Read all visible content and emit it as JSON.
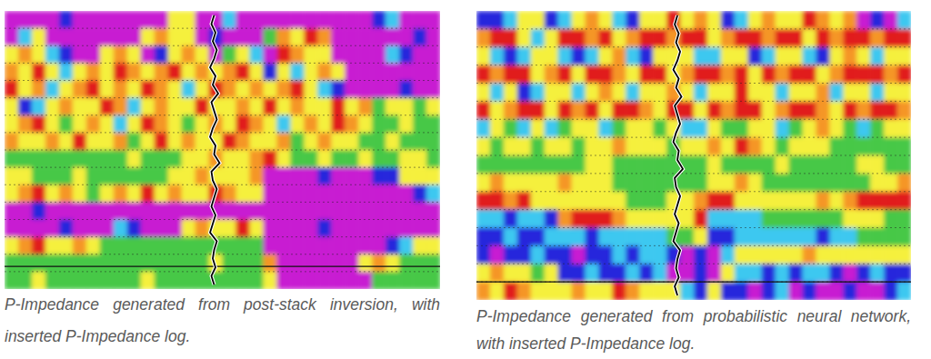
{
  "chart_data": [
    {
      "type": "heatmap",
      "caption": "P-Impedance generated from post-stack inversion, with inserted P-Impedance log.",
      "clim": [
        0,
        6
      ],
      "grid": true,
      "tick_labels": false,
      "horizon": 14.7,
      "well_log": [
        15.4,
        15.2,
        15.5,
        15.3,
        15.6,
        15.4,
        15.1,
        15.5,
        15.3,
        15.7,
        15.2,
        15.4,
        15.6,
        15.3,
        15.1,
        15.5,
        15.4,
        15.8,
        15.2,
        15.3,
        15.6,
        15.4,
        15.2,
        15.5,
        15.3,
        15.1,
        15.6,
        15.4,
        15.3,
        15.5,
        15.2,
        15.4
      ],
      "cells": [
        [
          0,
          0,
          0,
          0,
          1,
          0,
          0,
          0,
          0,
          0,
          0,
          0,
          4,
          4,
          0,
          0,
          2,
          0,
          0,
          0,
          0,
          0,
          0,
          0,
          0,
          0,
          0,
          1,
          2,
          0,
          0,
          0
        ],
        [
          0,
          2,
          4,
          0,
          0,
          0,
          0,
          0,
          0,
          0,
          4,
          5,
          4,
          4,
          0,
          1,
          0,
          0,
          0,
          3,
          5,
          4,
          6,
          5,
          0,
          0,
          0,
          0,
          0,
          0,
          1,
          0
        ],
        [
          4,
          5,
          4,
          2,
          1,
          0,
          0,
          4,
          5,
          4,
          0,
          1,
          4,
          5,
          4,
          0,
          3,
          4,
          2,
          0,
          6,
          5,
          4,
          4,
          0,
          0,
          0,
          0,
          2,
          1,
          0,
          0
        ],
        [
          5,
          4,
          6,
          4,
          2,
          4,
          5,
          4,
          6,
          5,
          4,
          5,
          6,
          4,
          5,
          4,
          5,
          6,
          4,
          1,
          4,
          2,
          4,
          5,
          4,
          0,
          0,
          0,
          0,
          0,
          0,
          0
        ],
        [
          6,
          4,
          5,
          2,
          4,
          5,
          6,
          4,
          5,
          4,
          6,
          5,
          4,
          2,
          4,
          6,
          5,
          4,
          5,
          4,
          5,
          6,
          4,
          2,
          1,
          0,
          0,
          0,
          0,
          1,
          0,
          0
        ],
        [
          4,
          1,
          2,
          4,
          5,
          4,
          4,
          6,
          5,
          2,
          4,
          5,
          4,
          4,
          6,
          4,
          4,
          5,
          4,
          6,
          4,
          5,
          4,
          4,
          6,
          4,
          5,
          3,
          4,
          4,
          3,
          4
        ],
        [
          4,
          5,
          6,
          4,
          3,
          4,
          5,
          4,
          2,
          4,
          6,
          5,
          4,
          3,
          4,
          5,
          4,
          6,
          5,
          4,
          2,
          4,
          5,
          4,
          6,
          5,
          4,
          3,
          3,
          4,
          3,
          3
        ],
        [
          5,
          4,
          4,
          5,
          4,
          6,
          4,
          4,
          5,
          3,
          4,
          6,
          4,
          5,
          4,
          4,
          6,
          5,
          4,
          4,
          5,
          3,
          4,
          5,
          4,
          4,
          3,
          3,
          4,
          3,
          3,
          3
        ],
        [
          3,
          3,
          3,
          3,
          3,
          3,
          3,
          3,
          3,
          4,
          3,
          3,
          3,
          4,
          4,
          5,
          4,
          4,
          5,
          6,
          4,
          3,
          3,
          4,
          3,
          3,
          4,
          3,
          3,
          4,
          4,
          3
        ],
        [
          4,
          4,
          3,
          3,
          3,
          4,
          3,
          3,
          3,
          3,
          3,
          3,
          4,
          4,
          5,
          4,
          4,
          4,
          5,
          0,
          0,
          0,
          0,
          1,
          0,
          0,
          0,
          1,
          1,
          4,
          4,
          4
        ],
        [
          4,
          5,
          6,
          4,
          5,
          4,
          3,
          4,
          5,
          4,
          6,
          4,
          5,
          4,
          4,
          6,
          5,
          4,
          4,
          0,
          0,
          0,
          0,
          0,
          0,
          0,
          0,
          0,
          0,
          0,
          1,
          2
        ],
        [
          0,
          0,
          1,
          0,
          0,
          0,
          0,
          0,
          0,
          0,
          0,
          0,
          0,
          0,
          0,
          0,
          0,
          0,
          0,
          0,
          0,
          0,
          0,
          0,
          0,
          0,
          0,
          0,
          0,
          0,
          0,
          0
        ],
        [
          0,
          0,
          0,
          0,
          1,
          0,
          0,
          0,
          2,
          1,
          0,
          0,
          0,
          4,
          5,
          4,
          4,
          6,
          4,
          0,
          0,
          0,
          0,
          1,
          0,
          0,
          0,
          0,
          0,
          0,
          0,
          0
        ],
        [
          4,
          5,
          6,
          4,
          4,
          5,
          4,
          3,
          3,
          3,
          3,
          3,
          3,
          3,
          3,
          3,
          3,
          3,
          3,
          0,
          0,
          0,
          0,
          0,
          0,
          0,
          0,
          0,
          1,
          2,
          4,
          4
        ],
        [
          3,
          3,
          3,
          3,
          3,
          3,
          3,
          3,
          3,
          3,
          3,
          3,
          3,
          3,
          3,
          4,
          3,
          3,
          3,
          5,
          0,
          0,
          0,
          0,
          0,
          0,
          4,
          5,
          4,
          3,
          3,
          3
        ],
        [
          3,
          3,
          4,
          3,
          3,
          3,
          3,
          3,
          3,
          3,
          4,
          3,
          3,
          3,
          3,
          3,
          3,
          3,
          3,
          4,
          0,
          0,
          0,
          0,
          0,
          0,
          0,
          3,
          3,
          3,
          3,
          3
        ]
      ]
    },
    {
      "type": "heatmap",
      "caption": "P-Impedance generated from probabilistic neural network, with inserted P-Impedance log.",
      "clim": [
        0,
        6
      ],
      "grid": true,
      "tick_labels": false,
      "horizon": 15.0,
      "well_log": [
        14.8,
        14.6,
        14.9,
        14.7,
        15.0,
        14.8,
        14.5,
        14.9,
        14.7,
        15.1,
        14.6,
        14.8,
        15.0,
        14.7,
        14.5,
        14.9,
        14.8,
        15.2,
        14.6,
        14.7,
        15.0,
        14.8,
        14.6,
        14.9,
        14.7,
        14.5,
        15.0,
        14.8,
        14.7,
        14.9,
        14.6,
        14.8
      ],
      "cells": [
        [
          1,
          1,
          2,
          4,
          4,
          1,
          2,
          4,
          5,
          4,
          2,
          1,
          4,
          4,
          6,
          4,
          5,
          4,
          1,
          2,
          4,
          5,
          4,
          4,
          6,
          5,
          4,
          5,
          0,
          1,
          0,
          2
        ],
        [
          5,
          6,
          6,
          4,
          2,
          4,
          6,
          6,
          5,
          6,
          4,
          5,
          6,
          6,
          5,
          6,
          6,
          4,
          5,
          6,
          6,
          5,
          6,
          6,
          4,
          6,
          5,
          6,
          6,
          5,
          6,
          6
        ],
        [
          4,
          2,
          1,
          2,
          4,
          4,
          2,
          1,
          2,
          4,
          5,
          2,
          1,
          4,
          4,
          4,
          2,
          2,
          4,
          4,
          1,
          2,
          4,
          4,
          2,
          1,
          4,
          5,
          4,
          2,
          4,
          4
        ],
        [
          6,
          5,
          6,
          6,
          4,
          5,
          6,
          4,
          6,
          6,
          5,
          4,
          6,
          6,
          4,
          5,
          6,
          6,
          5,
          6,
          4,
          6,
          5,
          6,
          6,
          4,
          5,
          6,
          6,
          6,
          5,
          6
        ],
        [
          4,
          2,
          4,
          1,
          2,
          4,
          4,
          2,
          4,
          5,
          4,
          2,
          4,
          4,
          5,
          4,
          2,
          4,
          4,
          6,
          4,
          4,
          2,
          4,
          4,
          5,
          2,
          4,
          4,
          2,
          4,
          4
        ],
        [
          6,
          4,
          5,
          6,
          6,
          4,
          6,
          5,
          6,
          4,
          6,
          6,
          5,
          4,
          6,
          6,
          4,
          6,
          5,
          6,
          6,
          4,
          5,
          6,
          6,
          5,
          4,
          6,
          5,
          6,
          6,
          5
        ],
        [
          2,
          4,
          3,
          2,
          4,
          2,
          3,
          4,
          4,
          2,
          3,
          4,
          4,
          3,
          4,
          2,
          2,
          4,
          3,
          3,
          4,
          4,
          2,
          3,
          4,
          5,
          4,
          3,
          2,
          3,
          4,
          4
        ],
        [
          4,
          3,
          4,
          4,
          3,
          4,
          4,
          3,
          4,
          4,
          5,
          4,
          4,
          4,
          3,
          4,
          4,
          5,
          4,
          6,
          5,
          4,
          3,
          4,
          4,
          4,
          3,
          3,
          3,
          3,
          3,
          3
        ],
        [
          3,
          3,
          3,
          3,
          3,
          3,
          3,
          3,
          4,
          4,
          3,
          3,
          3,
          3,
          3,
          3,
          3,
          4,
          3,
          3,
          3,
          3,
          4,
          3,
          3,
          3,
          3,
          3,
          4,
          4,
          3,
          3
        ],
        [
          4,
          5,
          4,
          4,
          4,
          4,
          5,
          4,
          4,
          4,
          3,
          3,
          3,
          3,
          3,
          3,
          3,
          4,
          4,
          5,
          4,
          3,
          3,
          3,
          3,
          3,
          3,
          3,
          3,
          4,
          4,
          5
        ],
        [
          6,
          6,
          5,
          6,
          4,
          4,
          4,
          4,
          4,
          4,
          4,
          3,
          3,
          3,
          4,
          4,
          5,
          6,
          6,
          4,
          4,
          4,
          4,
          4,
          4,
          5,
          4,
          5,
          6,
          6,
          6,
          6
        ],
        [
          2,
          2,
          1,
          2,
          2,
          1,
          5,
          6,
          6,
          6,
          5,
          4,
          4,
          4,
          4,
          4,
          6,
          2,
          2,
          2,
          2,
          3,
          3,
          3,
          3,
          3,
          3,
          4,
          4,
          4,
          3,
          3
        ],
        [
          1,
          1,
          2,
          1,
          1,
          2,
          2,
          2,
          1,
          2,
          2,
          2,
          2,
          2,
          3,
          3,
          4,
          1,
          1,
          2,
          2,
          2,
          2,
          2,
          2,
          1,
          2,
          2,
          3,
          3,
          3,
          3
        ],
        [
          1,
          0,
          1,
          1,
          2,
          1,
          1,
          0,
          1,
          1,
          2,
          1,
          2,
          2,
          1,
          0,
          1,
          0,
          2,
          4,
          4,
          4,
          4,
          4,
          5,
          4,
          4,
          4,
          4,
          4,
          4,
          4
        ],
        [
          4,
          5,
          4,
          4,
          3,
          4,
          1,
          1,
          2,
          1,
          1,
          2,
          1,
          2,
          0,
          0,
          1,
          0,
          4,
          2,
          2,
          1,
          2,
          1,
          2,
          2,
          1,
          0,
          1,
          2,
          1,
          1
        ],
        [
          5,
          4,
          6,
          5,
          4,
          4,
          4,
          5,
          4,
          4,
          6,
          5,
          4,
          4,
          4,
          2,
          1,
          4,
          1,
          1,
          0,
          1,
          2,
          0,
          1,
          0,
          0,
          1,
          0,
          0,
          1,
          2
        ]
      ]
    }
  ]
}
